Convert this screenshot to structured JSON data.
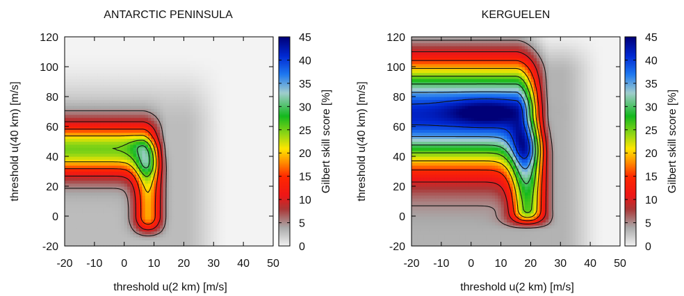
{
  "chart_data": [
    {
      "type": "heatmap",
      "title": "ANTARCTIC PENINSULA",
      "xlabel": "threshold u(2 km) [m/s]",
      "ylabel": "threshold u(40 km) [m/s]",
      "xlim": [
        -20,
        50
      ],
      "ylim": [
        -20,
        120
      ],
      "xticks": [
        "-20",
        "-10",
        "0",
        "10",
        "20",
        "30",
        "40",
        "50"
      ],
      "yticks": [
        "-20",
        "0",
        "20",
        "40",
        "60",
        "80",
        "100",
        "120"
      ],
      "colorbar": {
        "label": "Gilbert skill score [%]",
        "range": [
          0,
          45
        ],
        "ticks": [
          "0",
          "5",
          "10",
          "15",
          "20",
          "25",
          "30",
          "35",
          "40",
          "45"
        ]
      },
      "contour_levels": [
        5,
        10,
        15,
        20,
        25,
        30
      ],
      "field": {
        "peak_value": 31,
        "peak_at": [
          5,
          47
        ],
        "band_y_range": [
          12,
          75
        ],
        "band_x_range": [
          -20,
          16
        ],
        "vertical_leg_x_range": [
          0,
          16
        ]
      }
    },
    {
      "type": "heatmap",
      "title": "KERGUELEN",
      "xlabel": "threshold u(2 km) [m/s]",
      "ylabel": "threshold u(40 km) [m/s]",
      "xlim": [
        -20,
        50
      ],
      "ylim": [
        -20,
        120
      ],
      "xticks": [
        "-20",
        "-10",
        "0",
        "10",
        "20",
        "30",
        "40",
        "50"
      ],
      "yticks": [
        "-20",
        "0",
        "20",
        "40",
        "60",
        "80",
        "100",
        "120"
      ],
      "colorbar": {
        "label": "Gilbert skill score [%]",
        "range": [
          0,
          45
        ],
        "ticks": [
          "0",
          "5",
          "10",
          "15",
          "20",
          "25",
          "30",
          "35",
          "40",
          "45"
        ]
      },
      "contour_levels": [
        5,
        10,
        15,
        20,
        25,
        30,
        35,
        40
      ],
      "field": {
        "peak_value": 43,
        "peak_at": [
          5,
          70
        ],
        "band_y_range": [
          8,
          115
        ],
        "band_x_range": [
          -20,
          28
        ],
        "vertical_leg_x_range": [
          14,
          28
        ]
      }
    }
  ]
}
